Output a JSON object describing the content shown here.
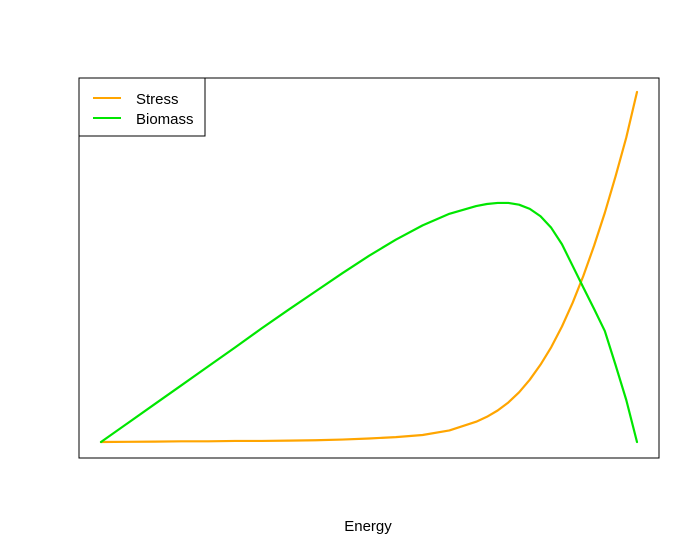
{
  "chart_data": {
    "type": "line",
    "title": "",
    "xlabel": "Energy",
    "ylabel": "",
    "grid": false,
    "legend_position": "top-left",
    "xlim": [
      0,
      1
    ],
    "ylim": [
      0,
      1
    ],
    "x": [
      0,
      0.05,
      0.1,
      0.15,
      0.2,
      0.25,
      0.3,
      0.35,
      0.4,
      0.45,
      0.5,
      0.55,
      0.6,
      0.65,
      0.7,
      0.72,
      0.74,
      0.76,
      0.78,
      0.8,
      0.82,
      0.84,
      0.86,
      0.88,
      0.9,
      0.92,
      0.94,
      0.96,
      0.98,
      1.0
    ],
    "series": [
      {
        "name": "Stress",
        "color": "#FFA500",
        "values": [
          0,
          0.0005,
          0.001,
          0.002,
          0.002,
          0.003,
          0.003,
          0.004,
          0.005,
          0.007,
          0.01,
          0.014,
          0.02,
          0.033,
          0.058,
          0.072,
          0.09,
          0.113,
          0.142,
          0.178,
          0.221,
          0.271,
          0.33,
          0.398,
          0.475,
          0.561,
          0.655,
          0.759,
          0.87,
          1.0
        ]
      },
      {
        "name": "Biomass",
        "color": "#00E600",
        "values": [
          0,
          0.054,
          0.108,
          0.162,
          0.216,
          0.27,
          0.325,
          0.378,
          0.43,
          0.482,
          0.532,
          0.578,
          0.619,
          0.652,
          0.674,
          0.68,
          0.683,
          0.683,
          0.678,
          0.666,
          0.645,
          0.612,
          0.565,
          0.503,
          0.441,
          0.38,
          0.317,
          0.22,
          0.12,
          0.0
        ]
      }
    ]
  }
}
